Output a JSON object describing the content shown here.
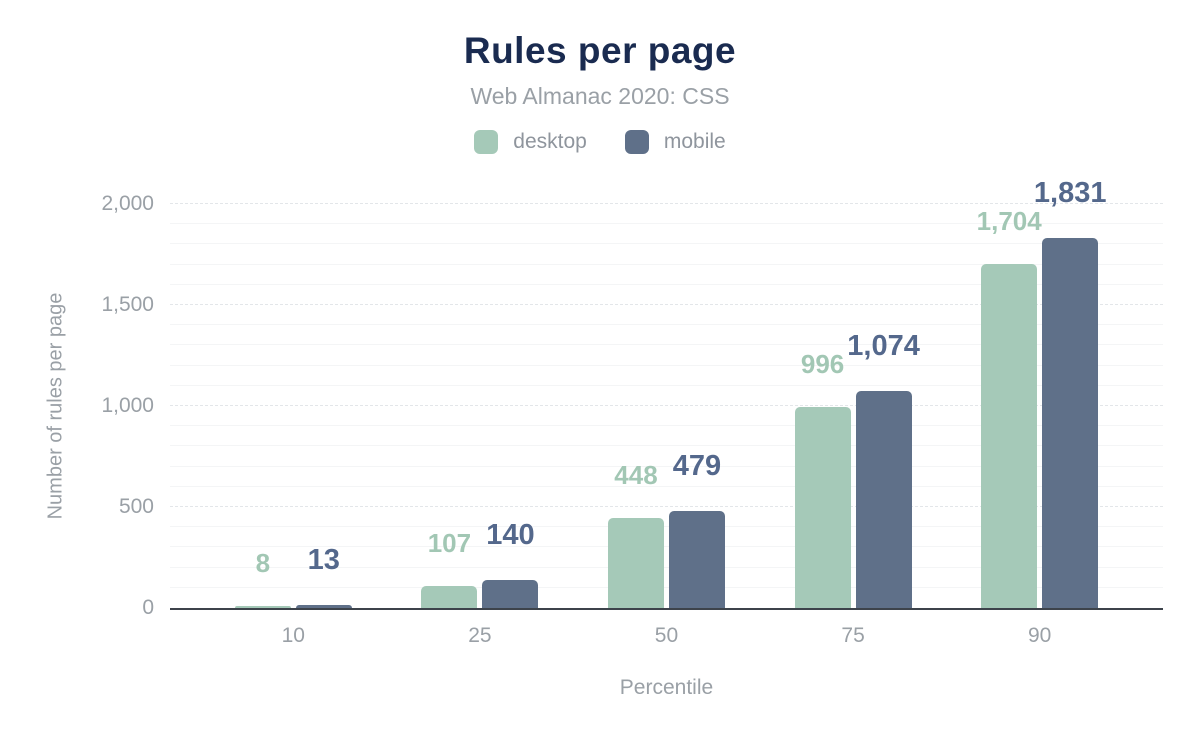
{
  "header": {
    "title": "Rules per page",
    "subtitle": "Web Almanac 2020: CSS"
  },
  "colors": {
    "title_text": "#1a2b50",
    "muted_text": "#9aa0a6",
    "axis_line": "#3d434b",
    "desktop": "#a5c9b8",
    "mobile": "#5f7089",
    "desktop_label": "#a2c7b4",
    "mobile_label": "#54688c"
  },
  "chart_data": {
    "type": "bar",
    "title": "Rules per page",
    "subtitle": "Web Almanac 2020: CSS",
    "categories": [
      "10",
      "25",
      "50",
      "75",
      "90"
    ],
    "series": [
      {
        "name": "desktop",
        "color": "#a5c9b8",
        "label_color": "#a2c7b4",
        "values": [
          8,
          107,
          448,
          996,
          1704
        ],
        "labels": [
          "8",
          "107",
          "448",
          "996",
          "1,704"
        ]
      },
      {
        "name": "mobile",
        "color": "#5f7089",
        "label_color": "#54688c",
        "values": [
          13,
          140,
          479,
          1074,
          1831
        ],
        "labels": [
          "13",
          "140",
          "479",
          "1,074",
          "1,831"
        ]
      }
    ],
    "xlabel": "Percentile",
    "ylabel": "Number of rules per page",
    "ylim": [
      0,
      2000
    ],
    "yticks": [
      {
        "value": 0,
        "label": "0"
      },
      {
        "value": 500,
        "label": "500"
      },
      {
        "value": 1000,
        "label": "1,000"
      },
      {
        "value": 1500,
        "label": "1,500"
      },
      {
        "value": 2000,
        "label": "2,000"
      }
    ],
    "grid": {
      "minor_step": 100,
      "major_step": 500,
      "legend_position": "top"
    }
  }
}
